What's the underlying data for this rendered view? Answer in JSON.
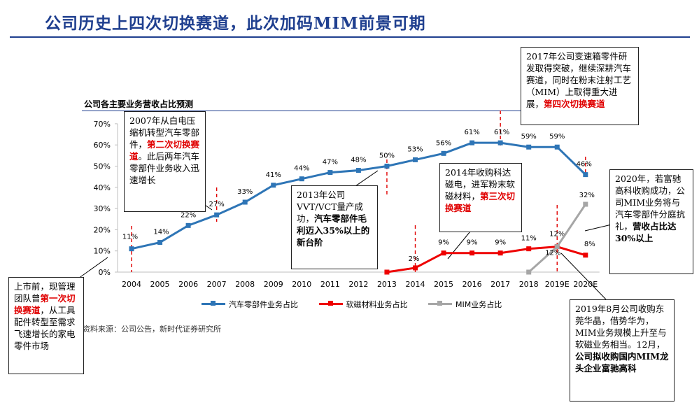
{
  "page": {
    "title": "公司历史上四次切换赛道，此次加码MIM前景可期",
    "chart_title": "公司各主要业务营收占比预测",
    "source": "资料来源：公司公告，新时代证券研究所"
  },
  "colors": {
    "series_auto": "#2e75b6",
    "series_magnet": "#ee0000",
    "series_mim": "#a6a6a6",
    "accent": "#1f3f8f",
    "highlight": "#e00000"
  },
  "annotations": [
    {
      "id": "n1",
      "parts": [
        {
          "t": "上市前，现管理团队曾"
        },
        {
          "t": "第一次切换赛道",
          "s": "hl"
        },
        {
          "t": "，从工具配件转型至需求飞速增长的家电零件市场"
        }
      ]
    },
    {
      "id": "n2",
      "parts": [
        {
          "t": "2007年从白电压缩机转型汽车零部件，"
        },
        {
          "t": "第二次切换赛道",
          "s": "hl"
        },
        {
          "t": "。此后两年汽车零部件业务收入迅速增长"
        }
      ]
    },
    {
      "id": "n3",
      "parts": [
        {
          "t": "2013年公司VVT/VCT量产成功，"
        },
        {
          "t": "汽车零部件毛利迈入35%以上的新台阶",
          "s": "bold"
        }
      ]
    },
    {
      "id": "n4",
      "parts": [
        {
          "t": "2014年收购科达磁电，进军粉末软磁材料，"
        },
        {
          "t": "第三次切换赛道",
          "s": "hl"
        }
      ]
    },
    {
      "id": "n5",
      "parts": [
        {
          "t": "2017年公司变速箱零件研发取得突破，继续深耕汽车赛道，同时在粉末注射工艺（MIM）上取得重大进展，"
        },
        {
          "t": "第四次切换赛道",
          "s": "hl"
        }
      ]
    },
    {
      "id": "n6",
      "parts": [
        {
          "t": "2020年，若富驰高科收购成功，公司MIM业务将与汽车零部件分庭抗礼，"
        },
        {
          "t": "营收占比达30%以上",
          "s": "bold"
        }
      ]
    },
    {
      "id": "n7",
      "parts": [
        {
          "t": "2019年8月公司收购东莞华晶，借势华为，MIM业务规模上升至与软磁业务相当。12月，"
        },
        {
          "t": "公司拟收购国内MIM龙头企业富驰高科",
          "s": "bold"
        }
      ]
    }
  ],
  "chart_data": {
    "type": "line",
    "title": "公司各主要业务营收占比预测",
    "x": [
      "2004",
      "2005",
      "2006",
      "2007",
      "2008",
      "2009",
      "2010",
      "2011",
      "2012",
      "2013",
      "2014",
      "2015",
      "2016",
      "2017",
      "2018",
      "2019E",
      "2020E"
    ],
    "y_ticks": [
      "0%",
      "10%",
      "20%",
      "30%",
      "40%",
      "50%",
      "60%",
      "70%"
    ],
    "ylim": [
      0,
      70
    ],
    "grid": false,
    "legend_position": "bottom",
    "series": [
      {
        "name": "汽车零部件业务占比",
        "color": "#2e75b6",
        "values": [
          11,
          14,
          22,
          27,
          33,
          41,
          44,
          47,
          48,
          50,
          53,
          56,
          61,
          61,
          59,
          59,
          46
        ],
        "labels": [
          "11%",
          "14%",
          "22%",
          "27%",
          "33%",
          "41%",
          "44%",
          "47%",
          "48%",
          "50%",
          "53%",
          "56%",
          "61%",
          "61%",
          "59%",
          "59%",
          "46%"
        ]
      },
      {
        "name": "软磁材料业务占比",
        "color": "#ee0000",
        "values": [
          null,
          null,
          null,
          null,
          null,
          null,
          null,
          null,
          null,
          0,
          2,
          9,
          9,
          9,
          11,
          12,
          8
        ],
        "labels": [
          null,
          null,
          null,
          null,
          null,
          null,
          null,
          null,
          null,
          null,
          "2%",
          "9%",
          "9%",
          "9%",
          "11%",
          "12%",
          "8%"
        ]
      },
      {
        "name": "MIM业务占比",
        "color": "#a6a6a6",
        "values": [
          null,
          null,
          null,
          null,
          null,
          null,
          null,
          null,
          null,
          null,
          null,
          null,
          null,
          null,
          0,
          12,
          32
        ],
        "labels": [
          null,
          null,
          null,
          null,
          null,
          null,
          null,
          null,
          null,
          null,
          null,
          null,
          null,
          null,
          null,
          "12%",
          "32%"
        ]
      }
    ],
    "event_markers": [
      "2004",
      "2007",
      "2013",
      "2014",
      "2017",
      "2019E",
      "2020E"
    ]
  }
}
